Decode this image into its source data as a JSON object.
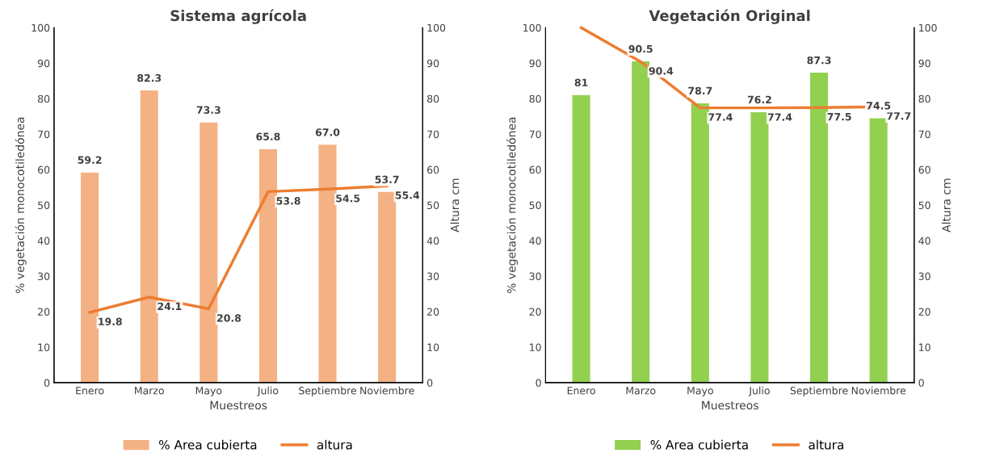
{
  "chart_data": [
    {
      "type": "bar",
      "title": "Sistema agrícola",
      "xlabel": "Muestreos",
      "ylabel": "% vegetación monocotiledónea",
      "y2label": "Altura cm",
      "categories": [
        "Enero",
        "Marzo",
        "Mayo",
        "Julio",
        "Septiembre",
        "Noviembre"
      ],
      "series": [
        {
          "name": "% Area cubierta",
          "color": "#f4b183",
          "values": [
            59.2,
            82.3,
            73.3,
            65.8,
            67.0,
            53.7
          ],
          "value_labels": [
            "59.2",
            "82.3",
            "73.3",
            "65.8",
            "67.0",
            "53.7"
          ]
        },
        {
          "name": "altura",
          "type": "line",
          "axis": "y2",
          "color": "#ed7d31",
          "values": [
            19.8,
            24.1,
            20.8,
            53.8,
            54.5,
            55.4
          ],
          "value_labels": [
            "19.8",
            "24.1",
            "20.8",
            "53.8",
            "54.5",
            "55.4"
          ]
        }
      ],
      "ylim": [
        0,
        100
      ],
      "yticks": [
        0,
        10,
        20,
        30,
        40,
        50,
        60,
        70,
        80,
        90,
        100
      ],
      "y2lim": [
        0,
        100
      ],
      "y2ticks": [
        0,
        10,
        20,
        30,
        40,
        50,
        60,
        70,
        80,
        90,
        100
      ],
      "legend": "bottom",
      "grid": false,
      "marker": "none"
    },
    {
      "type": "bar",
      "title": "Vegetación Original",
      "xlabel": "Muestreos",
      "ylabel": "% vegetación monocotiledónea",
      "y2label": "Altura cm",
      "categories": [
        "Enero",
        "Marzo",
        "Mayo",
        "Julio",
        "Septiembre",
        "Noviembre"
      ],
      "series": [
        {
          "name": "% Area cubierta",
          "color": "#92d050",
          "values": [
            81,
            90.5,
            78.7,
            76.2,
            87.3,
            74.5
          ],
          "value_labels": [
            "81",
            "90.5",
            "78.7",
            "76.2",
            "87.3",
            "74.5"
          ]
        },
        {
          "name": "altura",
          "type": "line",
          "axis": "y2",
          "color": "#ed7d31",
          "values": [
            100,
            90.4,
            77.4,
            77.4,
            77.5,
            77.7
          ],
          "value_labels": [
            null,
            "90.4",
            "77.4",
            "77.4",
            "77.5",
            "77.7"
          ]
        }
      ],
      "ylim": [
        0,
        100
      ],
      "yticks": [
        0,
        10,
        20,
        30,
        40,
        50,
        60,
        70,
        80,
        90,
        100
      ],
      "y2lim": [
        0,
        100
      ],
      "y2ticks": [
        0,
        10,
        20,
        30,
        40,
        50,
        60,
        70,
        80,
        90,
        100
      ],
      "legend": "bottom",
      "grid": false,
      "marker": "none"
    }
  ]
}
